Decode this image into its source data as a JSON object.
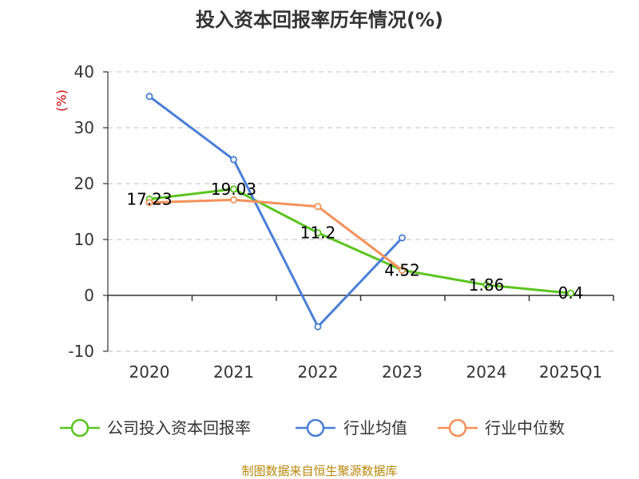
{
  "chart_data": {
    "type": "line",
    "title": "投入资本回报率历年情况(%)",
    "ylabel": "(%)",
    "categories": [
      "2020",
      "2021",
      "2022",
      "2023",
      "2024",
      "2025Q1"
    ],
    "ylim": [
      -10,
      40
    ],
    "yticks": [
      40,
      30,
      20,
      10,
      0,
      -10
    ],
    "grid": true,
    "legend_position": "bottom",
    "series": [
      {
        "name": "公司投入资本回报率",
        "color": "#5bc41f",
        "values": [
          17.23,
          19.03,
          11.2,
          4.52,
          1.86,
          0.4
        ],
        "labels": [
          "17.23",
          "19.03",
          "11.2",
          "4.52",
          "1.86",
          "0.4"
        ]
      },
      {
        "name": "行业均值",
        "color": "#4a7fd6",
        "values": [
          35.6,
          24.3,
          -5.6,
          10.3,
          null,
          null
        ]
      },
      {
        "name": "行业中位数",
        "color": "#f4915a",
        "values": [
          16.6,
          17.1,
          15.9,
          4.5,
          null,
          null
        ]
      }
    ]
  },
  "source": "制图数据来自恒生聚源数据库"
}
